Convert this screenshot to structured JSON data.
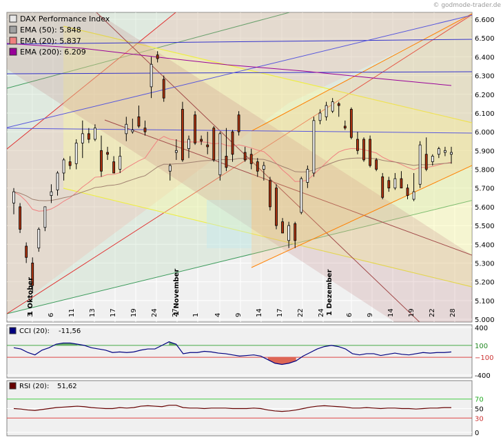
{
  "watermark": "© godmode-trader.de",
  "legend": [
    {
      "label": "DAX Performance Index",
      "value": "",
      "color": "#e8e8e8"
    },
    {
      "label": "EMA (50):",
      "value": "5.848",
      "color": "#a0a0a0"
    },
    {
      "label": "EMA (20):",
      "value": "5.837",
      "color": "#f08080"
    },
    {
      "label": "EMA (200):",
      "value": "6.209",
      "color": "#990099"
    }
  ],
  "cci": {
    "label": "CCI (20):",
    "value": "-11,56",
    "color": "#000080",
    "ticks": [
      "400",
      "100",
      "−100",
      "-400"
    ]
  },
  "rsi": {
    "label": "RSI (20):",
    "value": "51,62",
    "color": "#660000",
    "ticks": [
      "70",
      "50",
      "30",
      "0"
    ]
  },
  "month_labels": [
    "1 Oktober",
    "1 November",
    "1 Dezember"
  ],
  "chart_data": [
    {
      "type": "candlestick",
      "title": "DAX Performance Index",
      "yticks": [
        "6.600",
        "6.500",
        "6.400",
        "6.300",
        "6.200",
        "6.100",
        "6.000",
        "5.900",
        "5.800",
        "5.700",
        "5.600",
        "5.500",
        "5.400",
        "5.300",
        "5.200",
        "5.100",
        "5.000"
      ],
      "xticks": [
        "3",
        "6",
        "11",
        "13",
        "17",
        "19",
        "24",
        "27",
        "1",
        "4",
        "9",
        "14",
        "17",
        "22",
        "24",
        "6",
        "9",
        "14",
        "19",
        "22",
        "28"
      ],
      "ylim": [
        5000,
        6620
      ],
      "candles": [
        {
          "o": 5620,
          "h": 5700,
          "l": 5560,
          "c": 5680
        },
        {
          "o": 5600,
          "h": 5620,
          "l": 5460,
          "c": 5480
        },
        {
          "o": 5390,
          "h": 5410,
          "l": 5300,
          "c": 5330
        },
        {
          "o": 5300,
          "h": 5330,
          "l": 5140,
          "c": 5180
        },
        {
          "o": 5380,
          "h": 5490,
          "l": 5360,
          "c": 5480
        },
        {
          "o": 5490,
          "h": 5600,
          "l": 5470,
          "c": 5600
        },
        {
          "o": 5660,
          "h": 5720,
          "l": 5620,
          "c": 5680
        },
        {
          "o": 5690,
          "h": 5790,
          "l": 5660,
          "c": 5780
        },
        {
          "o": 5780,
          "h": 5860,
          "l": 5740,
          "c": 5850
        },
        {
          "o": 5840,
          "h": 5870,
          "l": 5800,
          "c": 5820
        },
        {
          "o": 5830,
          "h": 5960,
          "l": 5800,
          "c": 5940
        },
        {
          "o": 5940,
          "h": 6060,
          "l": 5860,
          "c": 5990
        },
        {
          "o": 5990,
          "h": 6020,
          "l": 5940,
          "c": 5960
        },
        {
          "o": 5960,
          "h": 6040,
          "l": 5950,
          "c": 6020
        },
        {
          "o": 5900,
          "h": 5980,
          "l": 5760,
          "c": 5790
        },
        {
          "o": 5890,
          "h": 5920,
          "l": 5850,
          "c": 5880
        },
        {
          "o": 5840,
          "h": 5870,
          "l": 5780,
          "c": 5780
        },
        {
          "o": 5800,
          "h": 5920,
          "l": 5780,
          "c": 5870
        },
        {
          "o": 5990,
          "h": 6080,
          "l": 5950,
          "c": 6040
        },
        {
          "o": 6000,
          "h": 6070,
          "l": 5990,
          "c": 6010
        },
        {
          "o": 6080,
          "h": 6140,
          "l": 6020,
          "c": 6030
        },
        {
          "o": 6020,
          "h": 6060,
          "l": 5980,
          "c": 6000
        },
        {
          "o": 6240,
          "h": 6400,
          "l": 6180,
          "c": 6360
        },
        {
          "o": 6410,
          "h": 6430,
          "l": 6370,
          "c": 6390
        },
        {
          "o": 6280,
          "h": 6300,
          "l": 6160,
          "c": 6180
        },
        {
          "o": 5790,
          "h": 5830,
          "l": 5740,
          "c": 5820
        },
        {
          "o": 5890,
          "h": 5960,
          "l": 5850,
          "c": 5900
        },
        {
          "o": 6120,
          "h": 6160,
          "l": 5840,
          "c": 5850
        },
        {
          "o": 5910,
          "h": 5980,
          "l": 5860,
          "c": 5960
        },
        {
          "o": 6090,
          "h": 6110,
          "l": 5930,
          "c": 5940
        },
        {
          "o": 5960,
          "h": 5980,
          "l": 5930,
          "c": 5950
        },
        {
          "o": 5930,
          "h": 6000,
          "l": 5880,
          "c": 5920
        },
        {
          "o": 6020,
          "h": 6030,
          "l": 5840,
          "c": 5850
        },
        {
          "o": 5770,
          "h": 6000,
          "l": 5740,
          "c": 5990
        },
        {
          "o": 5870,
          "h": 6020,
          "l": 5790,
          "c": 5810
        },
        {
          "o": 6000,
          "h": 6010,
          "l": 5840,
          "c": 5880
        },
        {
          "o": 6090,
          "h": 6110,
          "l": 5980,
          "c": 6000
        },
        {
          "o": 5890,
          "h": 5920,
          "l": 5840,
          "c": 5850
        },
        {
          "o": 5880,
          "h": 5910,
          "l": 5800,
          "c": 5830
        },
        {
          "o": 5840,
          "h": 5860,
          "l": 5760,
          "c": 5790
        },
        {
          "o": 5800,
          "h": 5840,
          "l": 5740,
          "c": 5820
        },
        {
          "o": 5740,
          "h": 5760,
          "l": 5580,
          "c": 5600
        },
        {
          "o": 5700,
          "h": 5720,
          "l": 5480,
          "c": 5500
        },
        {
          "o": 5520,
          "h": 5540,
          "l": 5460,
          "c": 5460
        },
        {
          "o": 5420,
          "h": 5520,
          "l": 5380,
          "c": 5500
        },
        {
          "o": 5510,
          "h": 5520,
          "l": 5380,
          "c": 5420
        },
        {
          "o": 5570,
          "h": 5760,
          "l": 5560,
          "c": 5750
        },
        {
          "o": 5730,
          "h": 5820,
          "l": 5700,
          "c": 5800
        },
        {
          "o": 5780,
          "h": 6080,
          "l": 5760,
          "c": 6060
        },
        {
          "o": 6060,
          "h": 6120,
          "l": 6040,
          "c": 6100
        },
        {
          "o": 6080,
          "h": 6160,
          "l": 6060,
          "c": 6140
        },
        {
          "o": 6110,
          "h": 6180,
          "l": 6100,
          "c": 6160
        },
        {
          "o": 6150,
          "h": 6160,
          "l": 6080,
          "c": 6140
        },
        {
          "o": 6030,
          "h": 6060,
          "l": 6010,
          "c": 6020
        },
        {
          "o": 6120,
          "h": 6130,
          "l": 5960,
          "c": 5970
        },
        {
          "o": 5960,
          "h": 6000,
          "l": 5880,
          "c": 5900
        },
        {
          "o": 5960,
          "h": 5970,
          "l": 5840,
          "c": 5850
        },
        {
          "o": 5960,
          "h": 5980,
          "l": 5810,
          "c": 5820
        },
        {
          "o": 5850,
          "h": 5860,
          "l": 5790,
          "c": 5800
        },
        {
          "o": 5760,
          "h": 5780,
          "l": 5640,
          "c": 5650
        },
        {
          "o": 5740,
          "h": 5760,
          "l": 5680,
          "c": 5700
        },
        {
          "o": 5700,
          "h": 5780,
          "l": 5690,
          "c": 5750
        },
        {
          "o": 5750,
          "h": 5790,
          "l": 5700,
          "c": 5700
        },
        {
          "o": 5700,
          "h": 5720,
          "l": 5640,
          "c": 5660
        },
        {
          "o": 5640,
          "h": 5780,
          "l": 5630,
          "c": 5680
        },
        {
          "o": 5720,
          "h": 5950,
          "l": 5700,
          "c": 5930
        },
        {
          "o": 5880,
          "h": 5970,
          "l": 5790,
          "c": 5800
        },
        {
          "o": 5840,
          "h": 5880,
          "l": 5820,
          "c": 5870
        },
        {
          "o": 5880,
          "h": 5920,
          "l": 5860,
          "c": 5910
        },
        {
          "o": 5890,
          "h": 5920,
          "l": 5870,
          "c": 5900
        },
        {
          "o": 5880,
          "h": 5920,
          "l": 5830,
          "c": 5890
        }
      ]
    },
    {
      "type": "line",
      "title": "CCI (20)",
      "ylim": [
        -400,
        400
      ],
      "values": [
        60,
        40,
        -20,
        -60,
        20,
        60,
        120,
        140,
        140,
        120,
        100,
        60,
        40,
        20,
        -20,
        -10,
        -20,
        -10,
        20,
        40,
        40,
        100,
        160,
        120,
        -40,
        -20,
        -20,
        0,
        -10,
        -30,
        -40,
        -60,
        -80,
        -70,
        -60,
        -80,
        -140,
        -200,
        -220,
        -200,
        -160,
        -80,
        -20,
        40,
        80,
        100,
        80,
        40,
        -40,
        -60,
        -40,
        -40,
        -70,
        -50,
        -30,
        -50,
        -60,
        -40,
        -20,
        -30,
        -20,
        -20,
        -10
      ]
    },
    {
      "type": "line",
      "title": "RSI (20)",
      "ylim": [
        0,
        100
      ],
      "values": [
        50,
        49,
        47,
        46,
        48,
        50,
        52,
        53,
        54,
        55,
        54,
        52,
        51,
        50,
        50,
        52,
        51,
        52,
        55,
        56,
        55,
        54,
        57,
        57,
        52,
        51,
        51,
        50,
        51,
        51,
        51,
        50,
        50,
        50,
        51,
        50,
        47,
        45,
        44,
        45,
        47,
        50,
        53,
        55,
        56,
        55,
        54,
        53,
        51,
        51,
        52,
        51,
        50,
        51,
        51,
        50,
        50,
        49,
        50,
        51,
        51,
        52,
        52
      ]
    }
  ]
}
